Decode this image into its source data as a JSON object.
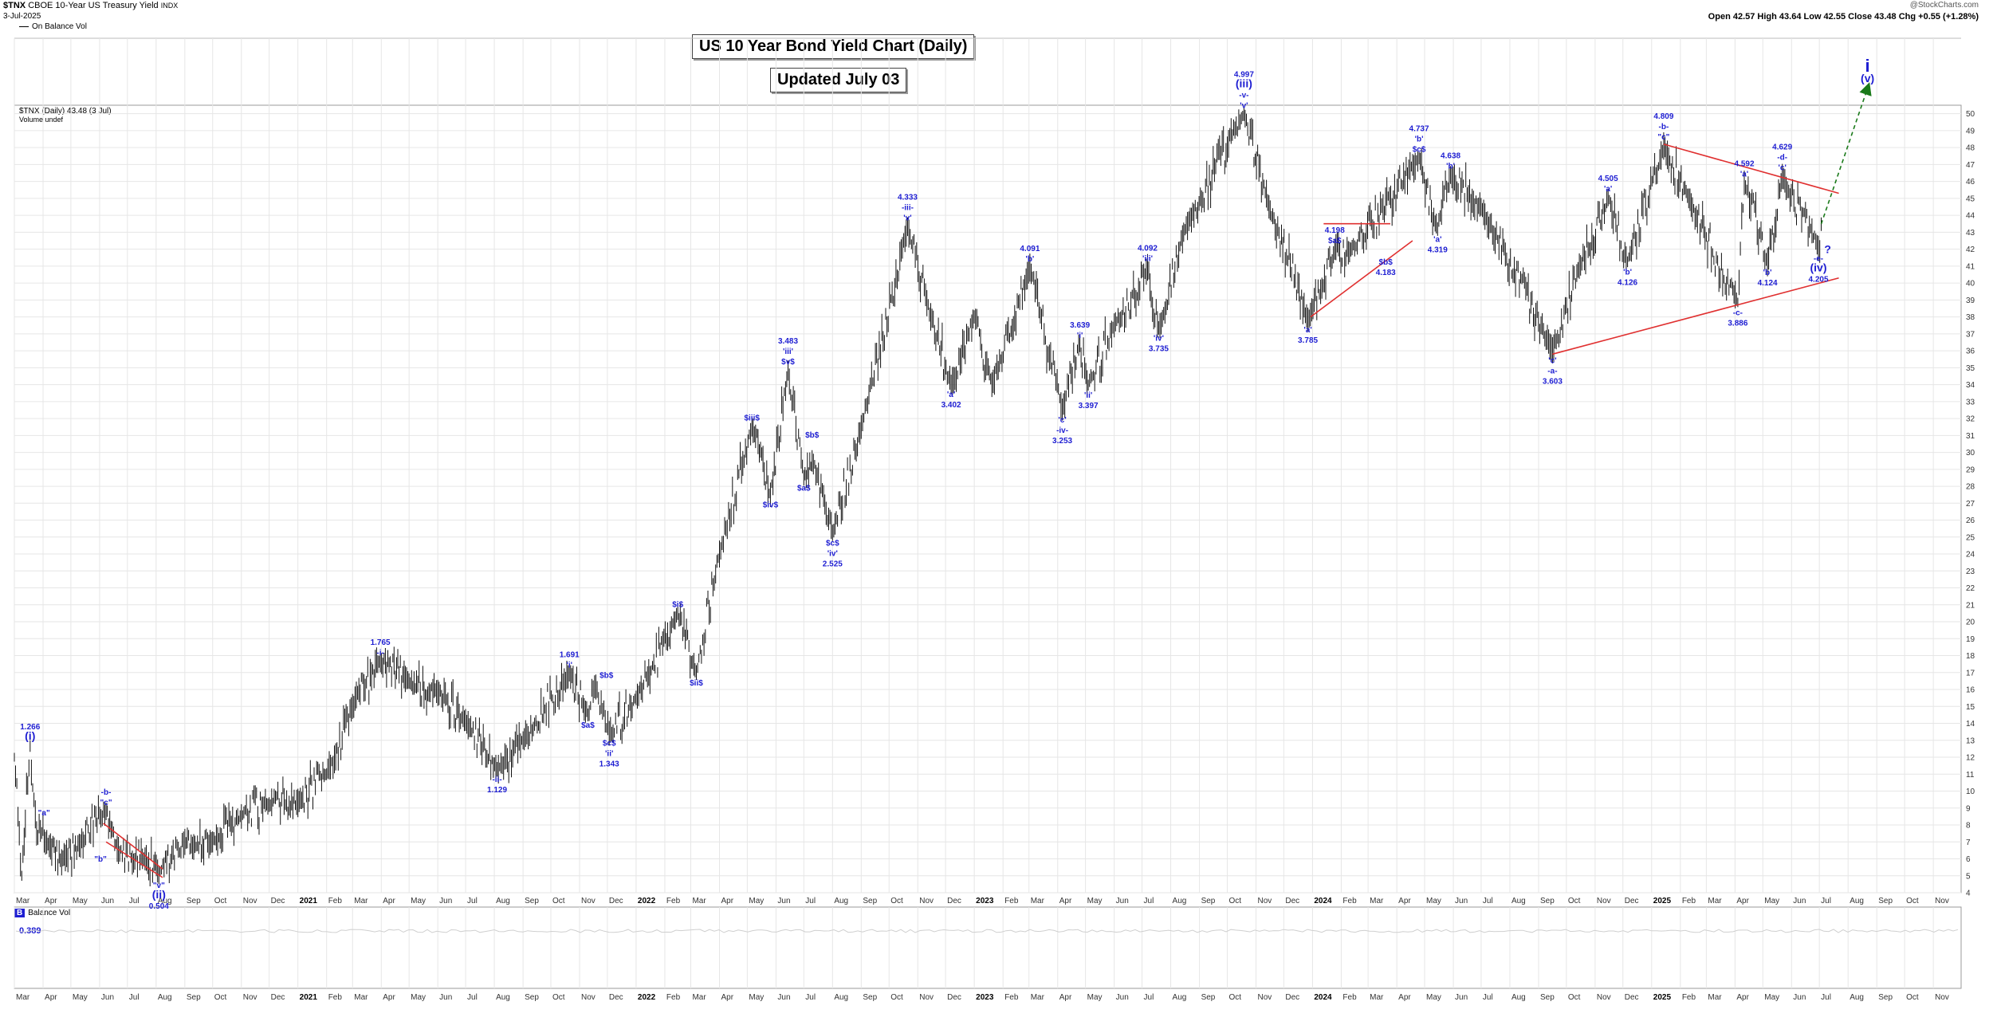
{
  "header": {
    "symbol": "$TNX",
    "name": "CBOE 10-Year US Treasury Yield",
    "exchange": "INDX",
    "date": "3-Jul-2025",
    "quote": "Open 42.57  High 43.64  Low 42.55  Close 43.48  Chg +0.55 (+1.28%)",
    "watermark": "@StockCharts.com",
    "on_balance_label": "On Balance Vol",
    "price_legend": "$TNX (Daily) 43.48 (3 Jul)",
    "volume_legend": "Volume undef",
    "lower_legend": "Balance Vol",
    "lower_value": "0.389"
  },
  "titles": {
    "main": "US 10 Year Bond Yield Chart (Daily)",
    "sub": "Updated July 03"
  },
  "colors": {
    "annotation": "#1e1ed2",
    "trendline": "#e03030",
    "projection": "#1a7a1a",
    "grid": "#e6e6e6",
    "price": "#111111"
  },
  "chart_data": {
    "type": "line",
    "series": [
      {
        "values": [
          [
            "2020-03-01",
            12.0
          ],
          [
            "2020-03-09",
            5.0
          ],
          [
            "2020-03-18",
            12.66
          ],
          [
            "2020-03-25",
            7.5
          ],
          [
            "2020-04-05",
            7.0
          ],
          [
            "2020-04-21",
            5.8
          ],
          [
            "2020-05-10",
            6.8
          ],
          [
            "2020-06-08",
            8.8
          ],
          [
            "2020-06-20",
            6.6
          ],
          [
            "2020-07-20",
            6.0
          ],
          [
            "2020-08-04",
            5.04
          ],
          [
            "2020-09-01",
            7.0
          ],
          [
            "2020-10-01",
            7.0
          ],
          [
            "2020-11-01",
            8.5
          ],
          [
            "2020-12-01",
            9.2
          ],
          [
            "2021-01-01",
            9.3
          ],
          [
            "2021-02-01",
            11.0
          ],
          [
            "2021-03-01",
            15.0
          ],
          [
            "2021-03-31",
            17.65
          ],
          [
            "2021-05-01",
            16.5
          ],
          [
            "2021-06-01",
            15.8
          ],
          [
            "2021-07-01",
            14.2
          ],
          [
            "2021-08-04",
            11.29
          ],
          [
            "2021-09-01",
            13.0
          ],
          [
            "2021-10-21",
            16.91
          ],
          [
            "2021-11-10",
            14.5
          ],
          [
            "2021-11-20",
            16.0
          ],
          [
            "2021-12-03",
            13.43
          ],
          [
            "2022-01-01",
            15.5
          ],
          [
            "2022-02-15",
            20.5
          ],
          [
            "2022-03-07",
            17.0
          ],
          [
            "2022-04-01",
            24.0
          ],
          [
            "2022-05-06",
            31.5
          ],
          [
            "2022-05-26",
            27.5
          ],
          [
            "2022-06-14",
            34.83
          ],
          [
            "2022-07-01",
            28.5
          ],
          [
            "2022-07-10",
            29.5
          ],
          [
            "2022-08-01",
            25.25
          ],
          [
            "2022-09-01",
            31.5
          ],
          [
            "2022-10-21",
            43.33
          ],
          [
            "2022-11-15",
            38.0
          ],
          [
            "2022-12-07",
            34.02
          ],
          [
            "2023-01-01",
            38.0
          ],
          [
            "2023-01-20",
            34.0
          ],
          [
            "2023-03-02",
            40.91
          ],
          [
            "2023-04-06",
            32.53
          ],
          [
            "2023-04-25",
            36.39
          ],
          [
            "2023-05-04",
            33.97
          ],
          [
            "2023-06-01",
            37.5
          ],
          [
            "2023-07-07",
            40.92
          ],
          [
            "2023-07-19",
            37.35
          ],
          [
            "2023-08-15",
            43.0
          ],
          [
            "2023-10-19",
            49.97
          ],
          [
            "2023-11-15",
            44.5
          ],
          [
            "2023-12-27",
            37.85
          ],
          [
            "2024-01-25",
            41.98
          ],
          [
            "2024-02-10",
            41.83
          ],
          [
            "2024-04-25",
            47.37
          ],
          [
            "2024-05-15",
            43.19
          ],
          [
            "2024-05-29",
            46.38
          ],
          [
            "2024-07-01",
            44.5
          ],
          [
            "2024-09-16",
            36.03
          ],
          [
            "2024-10-15",
            41.0
          ],
          [
            "2024-11-15",
            45.05
          ],
          [
            "2024-12-06",
            41.26
          ],
          [
            "2025-01-14",
            48.09
          ],
          [
            "2025-02-10",
            45.0
          ],
          [
            "2025-04-04",
            38.86
          ],
          [
            "2025-04-11",
            45.92
          ],
          [
            "2025-05-06",
            41.24
          ],
          [
            "2025-05-22",
            46.29
          ],
          [
            "2025-06-30",
            42.05
          ],
          [
            "2025-07-03",
            43.48
          ]
        ]
      }
    ],
    "projection": [
      [
        "2025-07-03",
        43.48
      ],
      [
        "2025-08-22",
        51.5
      ]
    ],
    "trendlines": [
      [
        [
          "2020-06-05",
          8.1
        ],
        [
          "2020-08-08",
          5.4
        ]
      ],
      [
        [
          "2020-06-08",
          7.0
        ],
        [
          "2020-08-08",
          4.9
        ]
      ],
      [
        [
          "2024-01-13",
          43.5
        ],
        [
          "2024-03-25",
          43.5
        ]
      ],
      [
        [
          "2023-12-30",
          38.0
        ],
        [
          "2024-04-18",
          42.5
        ]
      ],
      [
        [
          "2025-01-14",
          48.2
        ],
        [
          "2025-07-22",
          45.3
        ]
      ],
      [
        [
          "2024-09-16",
          35.8
        ],
        [
          "2025-07-22",
          40.3
        ]
      ]
    ],
    "y_ticks": [
      4,
      5,
      6,
      7,
      8,
      9,
      10,
      11,
      12,
      13,
      14,
      15,
      16,
      17,
      18,
      19,
      20,
      21,
      22,
      23,
      24,
      25,
      26,
      27,
      28,
      29,
      30,
      31,
      32,
      33,
      34,
      35,
      36,
      37,
      38,
      39,
      40,
      41,
      42,
      43,
      44,
      45,
      46,
      47,
      48,
      49,
      50
    ],
    "ylim": [
      4,
      50.5
    ],
    "x_ticks": [
      [
        "2020-03-01",
        "Mar"
      ],
      [
        "2020-04-01",
        "Apr"
      ],
      [
        "2020-05-01",
        "May"
      ],
      [
        "2020-06-01",
        "Jun"
      ],
      [
        "2020-07-01",
        "Jul"
      ],
      [
        "2020-08-01",
        "Aug"
      ],
      [
        "2020-09-01",
        "Sep"
      ],
      [
        "2020-10-01",
        "Oct"
      ],
      [
        "2020-11-01",
        "Nov"
      ],
      [
        "2020-12-01",
        "Dec"
      ],
      [
        "2021-01-01",
        "2021"
      ],
      [
        "2021-02-01",
        "Feb"
      ],
      [
        "2021-03-01",
        "Mar"
      ],
      [
        "2021-04-01",
        "Apr"
      ],
      [
        "2021-05-01",
        "May"
      ],
      [
        "2021-06-01",
        "Jun"
      ],
      [
        "2021-07-01",
        "Jul"
      ],
      [
        "2021-08-01",
        "Aug"
      ],
      [
        "2021-09-01",
        "Sep"
      ],
      [
        "2021-10-01",
        "Oct"
      ],
      [
        "2021-11-01",
        "Nov"
      ],
      [
        "2021-12-01",
        "Dec"
      ],
      [
        "2022-01-01",
        "2022"
      ],
      [
        "2022-02-01",
        "Feb"
      ],
      [
        "2022-03-01",
        "Mar"
      ],
      [
        "2022-04-01",
        "Apr"
      ],
      [
        "2022-05-01",
        "May"
      ],
      [
        "2022-06-01",
        "Jun"
      ],
      [
        "2022-07-01",
        "Jul"
      ],
      [
        "2022-08-01",
        "Aug"
      ],
      [
        "2022-09-01",
        "Sep"
      ],
      [
        "2022-10-01",
        "Oct"
      ],
      [
        "2022-11-01",
        "Nov"
      ],
      [
        "2022-12-01",
        "Dec"
      ],
      [
        "2023-01-01",
        "2023"
      ],
      [
        "2023-02-01",
        "Feb"
      ],
      [
        "2023-03-01",
        "Mar"
      ],
      [
        "2023-04-01",
        "Apr"
      ],
      [
        "2023-05-01",
        "May"
      ],
      [
        "2023-06-01",
        "Jun"
      ],
      [
        "2023-07-01",
        "Jul"
      ],
      [
        "2023-08-01",
        "Aug"
      ],
      [
        "2023-09-01",
        "Sep"
      ],
      [
        "2023-10-01",
        "Oct"
      ],
      [
        "2023-11-01",
        "Nov"
      ],
      [
        "2023-12-01",
        "Dec"
      ],
      [
        "2024-01-01",
        "2024"
      ],
      [
        "2024-02-01",
        "Feb"
      ],
      [
        "2024-03-01",
        "Mar"
      ],
      [
        "2024-04-01",
        "Apr"
      ],
      [
        "2024-05-01",
        "May"
      ],
      [
        "2024-06-01",
        "Jun"
      ],
      [
        "2024-07-01",
        "Jul"
      ],
      [
        "2024-08-01",
        "Aug"
      ],
      [
        "2024-09-01",
        "Sep"
      ],
      [
        "2024-10-01",
        "Oct"
      ],
      [
        "2024-11-01",
        "Nov"
      ],
      [
        "2024-12-01",
        "Dec"
      ],
      [
        "2025-01-01",
        "2025"
      ],
      [
        "2025-02-01",
        "Feb"
      ],
      [
        "2025-03-01",
        "Mar"
      ],
      [
        "2025-04-01",
        "Apr"
      ],
      [
        "2025-05-01",
        "May"
      ],
      [
        "2025-06-01",
        "Jun"
      ],
      [
        "2025-07-01",
        "Jul"
      ],
      [
        "2025-08-01",
        "Aug"
      ],
      [
        "2025-09-01",
        "Sep"
      ],
      [
        "2025-10-01",
        "Oct"
      ],
      [
        "2025-11-01",
        "Nov"
      ]
    ],
    "annotations": [
      {
        "x": "2020-03-18",
        "y": 12.66,
        "lines": [
          "1.266",
          "(i)"
        ],
        "pos": "above"
      },
      {
        "x": "2020-04-02",
        "y": 8.2,
        "lines": [
          "\"a\""
        ],
        "pos": "above"
      },
      {
        "x": "2020-06-08",
        "y": 8.8,
        "lines": [
          "-b-",
          "\"c\""
        ],
        "pos": "above"
      },
      {
        "x": "2020-06-02",
        "y": 6.6,
        "lines": [
          "\"b\""
        ],
        "pos": "below"
      },
      {
        "x": "2020-08-04",
        "y": 5.04,
        "lines": [
          "\"v\"",
          "(ii)",
          "0.504"
        ],
        "pos": "below"
      },
      {
        "x": "2021-03-31",
        "y": 17.65,
        "lines": [
          "1.765",
          "-i-"
        ],
        "pos": "above"
      },
      {
        "x": "2021-08-04",
        "y": 11.29,
        "lines": [
          "-ii-",
          "1.129"
        ],
        "pos": "below"
      },
      {
        "x": "2021-10-21",
        "y": 16.91,
        "lines": [
          "1.691",
          "'i'"
        ],
        "pos": "above"
      },
      {
        "x": "2021-11-10",
        "y": 14.5,
        "lines": [
          "$a$"
        ],
        "pos": "below"
      },
      {
        "x": "2021-11-30",
        "y": 16.3,
        "lines": [
          "$b$"
        ],
        "pos": "above"
      },
      {
        "x": "2021-12-03",
        "y": 13.43,
        "lines": [
          "$c$",
          "'ii'",
          "1.343"
        ],
        "pos": "below"
      },
      {
        "x": "2022-02-15",
        "y": 20.5,
        "lines": [
          "$i$"
        ],
        "pos": "above"
      },
      {
        "x": "2022-03-07",
        "y": 17.0,
        "lines": [
          "$ii$"
        ],
        "pos": "below"
      },
      {
        "x": "2022-05-06",
        "y": 31.5,
        "lines": [
          "$iii$"
        ],
        "pos": "above"
      },
      {
        "x": "2022-05-26",
        "y": 27.5,
        "lines": [
          "$iv$"
        ],
        "pos": "below"
      },
      {
        "x": "2022-06-14",
        "y": 34.83,
        "lines": [
          "3.483",
          "'iii'",
          "$v$"
        ],
        "pos": "above"
      },
      {
        "x": "2022-07-01",
        "y": 28.5,
        "lines": [
          "$a$"
        ],
        "pos": "below"
      },
      {
        "x": "2022-07-10",
        "y": 30.5,
        "lines": [
          "$b$"
        ],
        "pos": "above"
      },
      {
        "x": "2022-08-01",
        "y": 25.25,
        "lines": [
          "$c$",
          "'iv'",
          "2.525"
        ],
        "pos": "below"
      },
      {
        "x": "2022-10-21",
        "y": 43.33,
        "lines": [
          "4.333",
          "-iii-",
          "'v'"
        ],
        "pos": "above"
      },
      {
        "x": "2022-12-07",
        "y": 34.02,
        "lines": [
          "'a'",
          "3.402"
        ],
        "pos": "below"
      },
      {
        "x": "2023-03-02",
        "y": 40.91,
        "lines": [
          "4.091",
          "'b'"
        ],
        "pos": "above"
      },
      {
        "x": "2023-04-06",
        "y": 32.53,
        "lines": [
          "'c'",
          "-iv-",
          "3.253"
        ],
        "pos": "below"
      },
      {
        "x": "2023-04-25",
        "y": 36.39,
        "lines": [
          "3.639",
          "'i'"
        ],
        "pos": "above"
      },
      {
        "x": "2023-05-04",
        "y": 33.97,
        "lines": [
          "'ii'",
          "3.397"
        ],
        "pos": "below"
      },
      {
        "x": "2023-07-07",
        "y": 40.92,
        "lines": [
          "4.092",
          "'iii'"
        ],
        "pos": "above"
      },
      {
        "x": "2023-07-19",
        "y": 37.35,
        "lines": [
          "'iv'",
          "3.735"
        ],
        "pos": "below"
      },
      {
        "x": "2023-10-19",
        "y": 49.97,
        "lines": [
          "4.997",
          "(iii)",
          "-v-",
          "'v'"
        ],
        "pos": "above"
      },
      {
        "x": "2023-12-27",
        "y": 37.85,
        "lines": [
          "'a'",
          "3.785"
        ],
        "pos": "below"
      },
      {
        "x": "2024-01-25",
        "y": 41.98,
        "lines": [
          "4.198",
          "$a$"
        ],
        "pos": "above"
      },
      {
        "x": "2024-03-20",
        "y": 41.83,
        "lines": [
          "$b$",
          "4.183"
        ],
        "pos": "below"
      },
      {
        "x": "2024-04-25",
        "y": 47.37,
        "lines": [
          "4.737",
          "'b'",
          "$c$"
        ],
        "pos": "above"
      },
      {
        "x": "2024-05-15",
        "y": 43.19,
        "lines": [
          "'a'",
          "4.319"
        ],
        "pos": "below"
      },
      {
        "x": "2024-05-29",
        "y": 46.38,
        "lines": [
          "4.638",
          "'b'"
        ],
        "pos": "above"
      },
      {
        "x": "2024-09-16",
        "y": 36.03,
        "lines": [
          "'c'",
          "-a-",
          "3.603"
        ],
        "pos": "below"
      },
      {
        "x": "2024-11-15",
        "y": 45.05,
        "lines": [
          "4.505",
          "'a'"
        ],
        "pos": "above"
      },
      {
        "x": "2024-12-06",
        "y": 41.26,
        "lines": [
          "'b'",
          "4.126"
        ],
        "pos": "below"
      },
      {
        "x": "2025-01-14",
        "y": 48.09,
        "lines": [
          "4.809",
          "-b-",
          "\"c\""
        ],
        "pos": "above"
      },
      {
        "x": "2025-04-04",
        "y": 38.86,
        "lines": [
          "-c-",
          "3.886"
        ],
        "pos": "below"
      },
      {
        "x": "2025-04-11",
        "y": 45.92,
        "lines": [
          "4.592",
          "'a'"
        ],
        "pos": "above"
      },
      {
        "x": "2025-05-06",
        "y": 41.24,
        "lines": [
          "'b'",
          "4.124"
        ],
        "pos": "below"
      },
      {
        "x": "2025-05-22",
        "y": 46.29,
        "lines": [
          "4.629",
          "-d-",
          "'c'"
        ],
        "pos": "above"
      },
      {
        "x": "2025-06-30",
        "y": 42.05,
        "lines": [
          "-e-",
          "(iv)",
          "4.205"
        ],
        "pos": "below"
      },
      {
        "x": "2025-07-10",
        "y": 41.4,
        "lines": [
          "?"
        ],
        "pos": "above"
      },
      {
        "x": "2025-08-22",
        "y": 51.5,
        "lines": [
          "i",
          "(v)"
        ],
        "pos": "above"
      }
    ]
  }
}
